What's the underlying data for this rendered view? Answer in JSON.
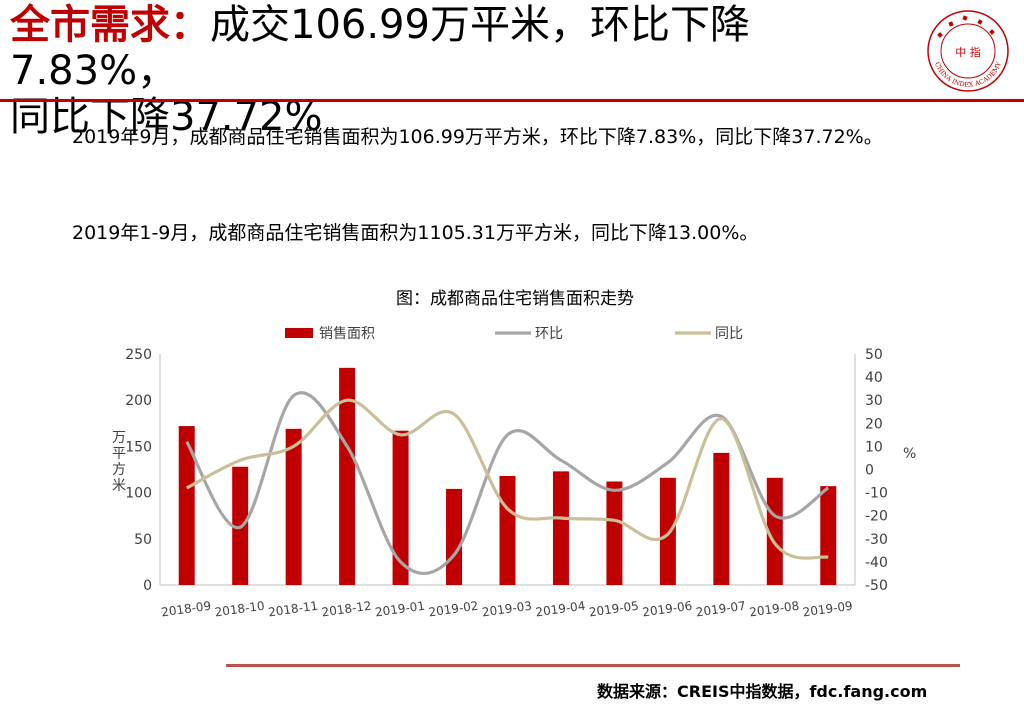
{
  "header": {
    "highlight": "全市需求：",
    "title_line1": "成交106.99万平米，环比下降7.83%，",
    "title_line2": "同比下降37.72%"
  },
  "logo": {
    "center_text": "中 指",
    "ring_text": "CHINA INDEX ACADEMY",
    "accent": "#c00000"
  },
  "body": {
    "p1": "2019年9月，成都商品住宅销售面积为106.99万平方米，环比下降7.83%，同比下降37.72%。",
    "p2": "2019年1-9月，成都商品住宅销售面积为1105.31万平方米，同比下降13.00%。"
  },
  "chart_data": {
    "type": "bar",
    "title": "图：成都商品住宅销售面积走势",
    "categories": [
      "2018-09",
      "2018-10",
      "2018-11",
      "2018-12",
      "2019-01",
      "2019-02",
      "2019-03",
      "2019-04",
      "2019-05",
      "2019-06",
      "2019-07",
      "2019-08",
      "2019-09"
    ],
    "series": [
      {
        "name": "销售面积",
        "type": "bar",
        "axis": "left",
        "color": "#c00000",
        "values": [
          172,
          128,
          169,
          235,
          167,
          104,
          118,
          123,
          112,
          116,
          143,
          116,
          107
        ]
      },
      {
        "name": "环比",
        "type": "line",
        "axis": "right",
        "color": "#a6a6a6",
        "values": [
          12,
          -25,
          32,
          10,
          -40,
          -37,
          15,
          4,
          -9,
          3,
          23,
          -20,
          -8
        ]
      },
      {
        "name": "同比",
        "type": "line",
        "axis": "right",
        "color": "#c9bf98",
        "values": [
          -8,
          4,
          10,
          30,
          15,
          24,
          -17,
          -21,
          -22,
          -28,
          22,
          -32,
          -38
        ]
      }
    ],
    "ylabel_left": "万平方米",
    "ylabel_right": "%",
    "ylim_left": [
      0,
      250
    ],
    "yticks_left": [
      "0",
      "50",
      "100",
      "150",
      "200",
      "250"
    ],
    "ylim_right": [
      -50,
      50
    ],
    "yticks_right": [
      "-50",
      "-40",
      "-30",
      "-20",
      "-10",
      "0",
      "10",
      "20",
      "30",
      "40",
      "50"
    ],
    "legend_position": "top",
    "grid": false
  },
  "footer": {
    "source": "数据来源：CREIS中指数据，fdc.fang.com"
  }
}
